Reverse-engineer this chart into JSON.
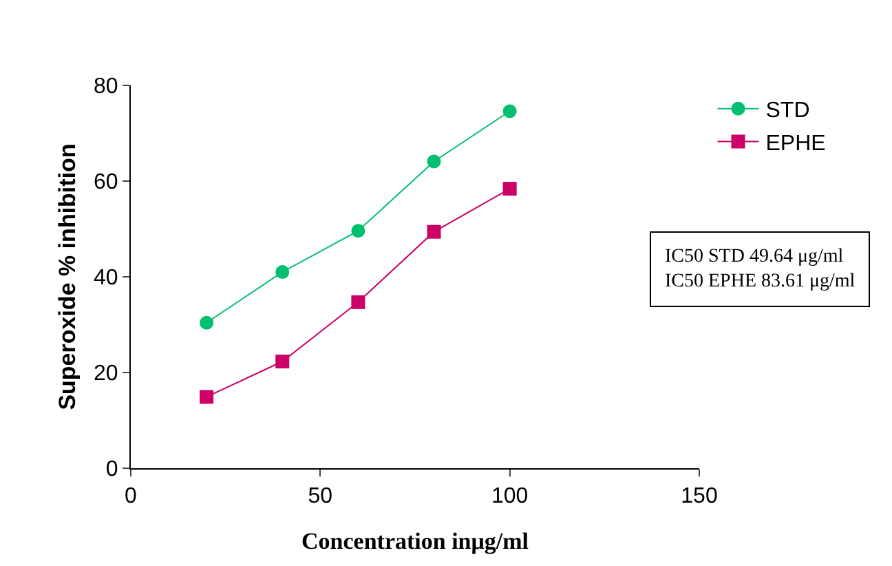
{
  "chart_data": {
    "type": "line",
    "xlabel": "Concentration inμg/ml",
    "ylabel": "Superoxide % inhibition",
    "x": [
      20,
      40,
      60,
      80,
      100
    ],
    "series": [
      {
        "name": "STD",
        "color": "#00c070",
        "marker": "circle",
        "values": [
          30.4,
          41,
          49.6,
          64.1,
          74.6
        ]
      },
      {
        "name": "EPHE",
        "color": "#cc0066",
        "marker": "square",
        "values": [
          14.9,
          22.3,
          34.7,
          49.4,
          58.4
        ]
      }
    ],
    "xlim": [
      0,
      150
    ],
    "xticks": [
      0,
      50,
      100,
      150
    ],
    "ylim": [
      0,
      80
    ],
    "yticks": [
      0,
      20,
      40,
      60,
      80
    ],
    "legend": "top right",
    "annotations": [
      "IC50 STD 49.64 μg/ml\nIC50 EPHE 83.61 μg/ml"
    ]
  }
}
